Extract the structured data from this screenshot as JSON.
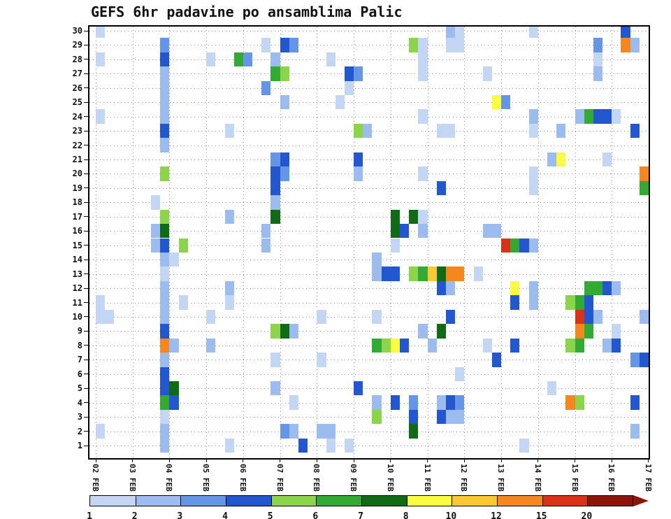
{
  "title": "GEFS 6hr padavine po ansamblima Palic",
  "chart_data": {
    "type": "heatmap",
    "title": "GEFS 6hr padavine po ansamblima Palic",
    "description": "6-hourly precipitation per GEFS ensemble member, station Palic",
    "step_hours": 6,
    "x_axis": {
      "tick_labels": [
        "02 FEB",
        "03 FEB",
        "04 FEB",
        "05 FEB",
        "06 FEB",
        "07 FEB",
        "08 FEB",
        "09 FEB",
        "10 FEB",
        "11 FEB",
        "12 FEB",
        "13 FEB",
        "14 FEB",
        "15 FEB",
        "16 FEB",
        "17 FEB"
      ]
    },
    "y_axis": {
      "tick_labels": [
        "30",
        "29",
        "28",
        "27",
        "26",
        "25",
        "24",
        "23",
        "22",
        "21",
        "20",
        "19",
        "18",
        "17",
        "16",
        "15",
        "14",
        "13",
        "12",
        "11",
        "10",
        "9",
        "8",
        "7",
        "6",
        "5",
        "4",
        "3",
        "2",
        "1"
      ]
    },
    "legend": {
      "boundary_labels": [
        "1",
        "2",
        "3",
        "4",
        "5",
        "6",
        "7",
        "8",
        "10",
        "12",
        "15",
        "20"
      ],
      "segment_colors": [
        "#c3d7f5",
        "#9cbcf0",
        "#6495e6",
        "#2257d0",
        "#8cd44a",
        "#33aa33",
        "#116b16",
        "#fbfb3f",
        "#f9c832",
        "#f6871f",
        "#da3218",
        "#8c1408"
      ]
    },
    "value_colors": {
      "1": "#c3d7f5",
      "2": "#9cbcf0",
      "3": "#6495e6",
      "4": "#2257d0",
      "5": "#8cd44a",
      "6": "#33aa33",
      "7": "#116b16",
      "8": "#fbfb3f",
      "10": "#f9c832",
      "12": "#f6871f",
      "15": "#da3218",
      "20": "#8c1408"
    },
    "cells": [
      [
        30,
        0,
        1
      ],
      [
        30,
        38,
        2
      ],
      [
        30,
        39,
        1
      ],
      [
        30,
        47,
        1
      ],
      [
        30,
        57,
        4
      ],
      [
        29,
        7,
        3
      ],
      [
        29,
        18,
        1
      ],
      [
        29,
        20,
        4
      ],
      [
        29,
        21,
        3
      ],
      [
        29,
        34,
        5
      ],
      [
        29,
        35,
        1
      ],
      [
        29,
        38,
        1
      ],
      [
        29,
        39,
        1
      ],
      [
        29,
        54,
        3
      ],
      [
        29,
        57,
        12
      ],
      [
        29,
        58,
        2
      ],
      [
        28,
        0,
        1
      ],
      [
        28,
        7,
        4
      ],
      [
        28,
        12,
        1
      ],
      [
        28,
        15,
        6
      ],
      [
        28,
        16,
        3
      ],
      [
        28,
        19,
        2
      ],
      [
        28,
        25,
        1
      ],
      [
        28,
        35,
        1
      ],
      [
        28,
        54,
        1
      ],
      [
        27,
        7,
        2
      ],
      [
        27,
        19,
        6
      ],
      [
        27,
        20,
        5
      ],
      [
        27,
        27,
        4
      ],
      [
        27,
        28,
        3
      ],
      [
        27,
        35,
        1
      ],
      [
        27,
        42,
        1
      ],
      [
        27,
        54,
        2
      ],
      [
        26,
        7,
        2
      ],
      [
        26,
        18,
        3
      ],
      [
        26,
        27,
        1
      ],
      [
        25,
        7,
        2
      ],
      [
        25,
        20,
        2
      ],
      [
        25,
        26,
        1
      ],
      [
        25,
        43,
        8
      ],
      [
        25,
        44,
        3
      ],
      [
        24,
        0,
        1
      ],
      [
        24,
        7,
        2
      ],
      [
        24,
        35,
        1
      ],
      [
        24,
        47,
        2
      ],
      [
        24,
        52,
        2
      ],
      [
        24,
        53,
        6
      ],
      [
        24,
        54,
        4
      ],
      [
        24,
        55,
        4
      ],
      [
        24,
        56,
        1
      ],
      [
        23,
        7,
        4
      ],
      [
        23,
        14,
        1
      ],
      [
        23,
        28,
        5
      ],
      [
        23,
        29,
        2
      ],
      [
        23,
        37,
        1
      ],
      [
        23,
        38,
        1
      ],
      [
        23,
        47,
        1
      ],
      [
        23,
        50,
        2
      ],
      [
        23,
        58,
        4
      ],
      [
        22,
        7,
        2
      ],
      [
        21,
        19,
        3
      ],
      [
        21,
        20,
        4
      ],
      [
        21,
        28,
        4
      ],
      [
        21,
        49,
        2
      ],
      [
        21,
        50,
        8
      ],
      [
        21,
        55,
        1
      ],
      [
        20,
        7,
        5
      ],
      [
        20,
        19,
        4
      ],
      [
        20,
        20,
        3
      ],
      [
        20,
        28,
        2
      ],
      [
        20,
        35,
        1
      ],
      [
        20,
        47,
        1
      ],
      [
        20,
        59,
        12
      ],
      [
        19,
        19,
        4
      ],
      [
        19,
        37,
        4
      ],
      [
        19,
        47,
        1
      ],
      [
        19,
        59,
        6
      ],
      [
        18,
        6,
        1
      ],
      [
        18,
        19,
        2
      ],
      [
        17,
        7,
        5
      ],
      [
        17,
        14,
        2
      ],
      [
        17,
        19,
        7
      ],
      [
        17,
        32,
        7
      ],
      [
        17,
        34,
        7
      ],
      [
        17,
        35,
        1
      ],
      [
        16,
        6,
        2
      ],
      [
        16,
        7,
        7
      ],
      [
        16,
        18,
        2
      ],
      [
        16,
        32,
        7
      ],
      [
        16,
        33,
        4
      ],
      [
        16,
        35,
        2
      ],
      [
        16,
        42,
        2
      ],
      [
        16,
        43,
        2
      ],
      [
        15,
        6,
        2
      ],
      [
        15,
        7,
        4
      ],
      [
        15,
        9,
        5
      ],
      [
        15,
        18,
        2
      ],
      [
        15,
        32,
        1
      ],
      [
        15,
        44,
        15
      ],
      [
        15,
        45,
        6
      ],
      [
        15,
        46,
        4
      ],
      [
        15,
        47,
        2
      ],
      [
        14,
        7,
        2
      ],
      [
        14,
        8,
        1
      ],
      [
        14,
        30,
        2
      ],
      [
        13,
        7,
        1
      ],
      [
        13,
        30,
        2
      ],
      [
        13,
        31,
        4
      ],
      [
        13,
        32,
        4
      ],
      [
        13,
        34,
        5
      ],
      [
        13,
        35,
        6
      ],
      [
        13,
        36,
        10
      ],
      [
        13,
        37,
        7
      ],
      [
        13,
        38,
        12
      ],
      [
        13,
        39,
        12
      ],
      [
        13,
        41,
        1
      ],
      [
        12,
        7,
        2
      ],
      [
        12,
        14,
        2
      ],
      [
        12,
        37,
        4
      ],
      [
        12,
        38,
        2
      ],
      [
        12,
        45,
        8
      ],
      [
        12,
        47,
        2
      ],
      [
        12,
        53,
        6
      ],
      [
        12,
        54,
        6
      ],
      [
        12,
        55,
        4
      ],
      [
        12,
        56,
        2
      ],
      [
        11,
        0,
        1
      ],
      [
        11,
        7,
        2
      ],
      [
        11,
        9,
        1
      ],
      [
        11,
        14,
        1
      ],
      [
        11,
        45,
        4
      ],
      [
        11,
        47,
        2
      ],
      [
        11,
        51,
        5
      ],
      [
        11,
        52,
        6
      ],
      [
        11,
        53,
        4
      ],
      [
        10,
        0,
        1
      ],
      [
        10,
        1,
        1
      ],
      [
        10,
        7,
        2
      ],
      [
        10,
        12,
        1
      ],
      [
        10,
        24,
        1
      ],
      [
        10,
        30,
        1
      ],
      [
        10,
        38,
        4
      ],
      [
        10,
        52,
        15
      ],
      [
        10,
        53,
        4
      ],
      [
        10,
        54,
        2
      ],
      [
        10,
        59,
        2
      ],
      [
        9,
        7,
        4
      ],
      [
        9,
        19,
        5
      ],
      [
        9,
        20,
        7
      ],
      [
        9,
        21,
        2
      ],
      [
        9,
        35,
        2
      ],
      [
        9,
        37,
        7
      ],
      [
        9,
        52,
        12
      ],
      [
        9,
        53,
        6
      ],
      [
        9,
        56,
        1
      ],
      [
        8,
        7,
        12
      ],
      [
        8,
        8,
        2
      ],
      [
        8,
        12,
        2
      ],
      [
        8,
        30,
        6
      ],
      [
        8,
        31,
        5
      ],
      [
        8,
        32,
        8
      ],
      [
        8,
        33,
        4
      ],
      [
        8,
        36,
        2
      ],
      [
        8,
        42,
        1
      ],
      [
        8,
        45,
        4
      ],
      [
        8,
        51,
        5
      ],
      [
        8,
        52,
        6
      ],
      [
        8,
        55,
        2
      ],
      [
        8,
        56,
        4
      ],
      [
        7,
        7,
        2
      ],
      [
        7,
        19,
        1
      ],
      [
        7,
        24,
        1
      ],
      [
        7,
        43,
        4
      ],
      [
        7,
        58,
        3
      ],
      [
        7,
        59,
        4
      ],
      [
        6,
        7,
        4
      ],
      [
        6,
        39,
        1
      ],
      [
        5,
        7,
        4
      ],
      [
        5,
        8,
        7
      ],
      [
        5,
        19,
        2
      ],
      [
        5,
        28,
        4
      ],
      [
        5,
        49,
        1
      ],
      [
        4,
        7,
        6
      ],
      [
        4,
        8,
        4
      ],
      [
        4,
        21,
        1
      ],
      [
        4,
        30,
        2
      ],
      [
        4,
        32,
        4
      ],
      [
        4,
        34,
        3
      ],
      [
        4,
        37,
        2
      ],
      [
        4,
        38,
        4
      ],
      [
        4,
        39,
        3
      ],
      [
        4,
        51,
        12
      ],
      [
        4,
        52,
        5
      ],
      [
        4,
        58,
        4
      ],
      [
        3,
        7,
        1
      ],
      [
        3,
        30,
        5
      ],
      [
        3,
        34,
        4
      ],
      [
        3,
        37,
        4
      ],
      [
        3,
        38,
        2
      ],
      [
        3,
        39,
        2
      ],
      [
        2,
        0,
        1
      ],
      [
        2,
        7,
        2
      ],
      [
        2,
        20,
        3
      ],
      [
        2,
        21,
        2
      ],
      [
        2,
        24,
        2
      ],
      [
        2,
        25,
        2
      ],
      [
        2,
        34,
        7
      ],
      [
        2,
        58,
        2
      ],
      [
        1,
        7,
        2
      ],
      [
        1,
        14,
        1
      ],
      [
        1,
        22,
        4
      ],
      [
        1,
        25,
        1
      ],
      [
        1,
        27,
        1
      ],
      [
        1,
        46,
        1
      ]
    ]
  }
}
